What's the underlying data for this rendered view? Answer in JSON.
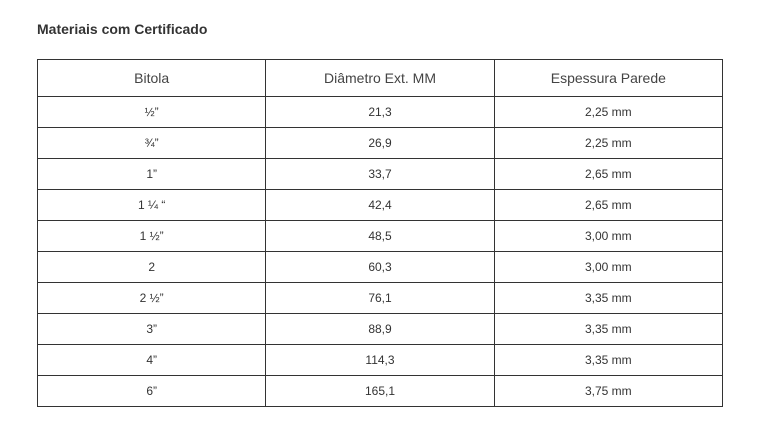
{
  "title": "Materiais com Certificado",
  "table": {
    "header": [
      "Bitola",
      "Diâmetro Ext. MM",
      "Espessura Parede"
    ],
    "rows": [
      [
        "½”",
        "21,3",
        "2,25 mm"
      ],
      [
        "¾”",
        "26,9",
        "2,25 mm"
      ],
      [
        "1”",
        "33,7",
        "2,65 mm"
      ],
      [
        "1 ¼ “",
        "42,4",
        "2,65 mm"
      ],
      [
        "1 ½”",
        "48,5",
        "3,00 mm"
      ],
      [
        "2",
        "60,3",
        "3,00 mm"
      ],
      [
        "2 ½”",
        "76,1",
        "3,35 mm"
      ],
      [
        "3”",
        "88,9",
        "3,35 mm"
      ],
      [
        "4”",
        "114,3",
        "3,35 mm"
      ],
      [
        "6”",
        "165,1",
        "3,75 mm"
      ]
    ]
  }
}
